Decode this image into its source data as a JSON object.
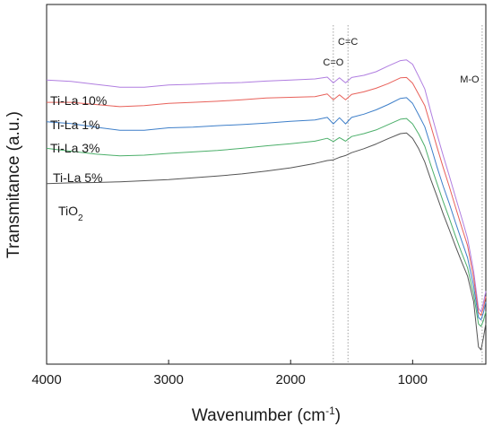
{
  "chart_data": {
    "type": "line",
    "title": "",
    "xlabel": "Wavenumber (cm",
    "xlabel_sup": "-1",
    "xlabel_end": ")",
    "ylabel": "Transmitance (a.u.)",
    "x_reversed": true,
    "xlim": [
      4000,
      400
    ],
    "xticks": [
      "4000",
      "3000",
      "2000",
      "1000"
    ],
    "x_tick_values": [
      4000,
      3000,
      2000,
      1000
    ],
    "ylim": [
      0,
      1
    ],
    "y_ticks_shown": false,
    "grid": false,
    "legend": "inline-left",
    "annotations": [
      {
        "label": "C=O",
        "x": 1650,
        "style": "dotted-line"
      },
      {
        "label": "C=C",
        "x": 1530,
        "style": "dotted-line"
      },
      {
        "label": "M-O",
        "x": 430,
        "style": "dotted-line"
      }
    ],
    "series_x": [
      4000,
      3800,
      3600,
      3400,
      3200,
      3000,
      2800,
      2600,
      2400,
      2200,
      2000,
      1800,
      1700,
      1650,
      1600,
      1550,
      1500,
      1400,
      1300,
      1200,
      1100,
      1050,
      1000,
      950,
      900,
      850,
      800,
      750,
      700,
      650,
      600,
      550,
      500,
      460,
      440,
      420,
      400
    ],
    "series": [
      {
        "name": "Ti-La 10%",
        "label_text": "Ti-La 10%",
        "color": "#b07ee0",
        "values": [
          0.79,
          0.786,
          0.778,
          0.77,
          0.77,
          0.776,
          0.778,
          0.781,
          0.783,
          0.787,
          0.79,
          0.793,
          0.798,
          0.782,
          0.796,
          0.782,
          0.797,
          0.803,
          0.813,
          0.829,
          0.844,
          0.846,
          0.834,
          0.8,
          0.765,
          0.7,
          0.639,
          0.58,
          0.524,
          0.466,
          0.409,
          0.35,
          0.258,
          0.155,
          0.146,
          0.17,
          0.203
        ]
      },
      {
        "name": "Ti-La 1%",
        "label_text": "Ti-La 1%",
        "color": "#e8615a",
        "values": [
          0.728,
          0.728,
          0.722,
          0.716,
          0.719,
          0.725,
          0.728,
          0.731,
          0.735,
          0.74,
          0.742,
          0.744,
          0.751,
          0.735,
          0.749,
          0.735,
          0.75,
          0.757,
          0.767,
          0.78,
          0.796,
          0.797,
          0.781,
          0.75,
          0.719,
          0.661,
          0.603,
          0.547,
          0.494,
          0.438,
          0.383,
          0.33,
          0.24,
          0.144,
          0.136,
          0.156,
          0.188
        ]
      },
      {
        "name": "Ti-La 3%",
        "label_text": "Ti-La 3%",
        "color": "#3e7fc9",
        "values": [
          0.674,
          0.669,
          0.659,
          0.65,
          0.65,
          0.657,
          0.659,
          0.663,
          0.666,
          0.67,
          0.675,
          0.679,
          0.686,
          0.668,
          0.685,
          0.668,
          0.686,
          0.695,
          0.707,
          0.722,
          0.739,
          0.741,
          0.725,
          0.693,
          0.66,
          0.605,
          0.548,
          0.495,
          0.447,
          0.395,
          0.345,
          0.296,
          0.217,
          0.13,
          0.123,
          0.143,
          0.173
        ]
      },
      {
        "name": "Ti-La 5%",
        "label_text": "Ti-La 5%",
        "color": "#4caf6a",
        "values": [
          0.6,
          0.592,
          0.584,
          0.579,
          0.581,
          0.586,
          0.59,
          0.594,
          0.6,
          0.607,
          0.613,
          0.62,
          0.628,
          0.619,
          0.63,
          0.62,
          0.633,
          0.641,
          0.651,
          0.666,
          0.681,
          0.683,
          0.668,
          0.64,
          0.606,
          0.552,
          0.502,
          0.452,
          0.406,
          0.357,
          0.311,
          0.268,
          0.194,
          0.112,
          0.105,
          0.121,
          0.146
        ]
      },
      {
        "name": "TiO2",
        "label_text": "TiO",
        "label_sub": "2",
        "color": "#555555",
        "values": [
          0.502,
          0.504,
          0.505,
          0.507,
          0.51,
          0.513,
          0.518,
          0.523,
          0.529,
          0.537,
          0.546,
          0.558,
          0.566,
          0.568,
          0.575,
          0.58,
          0.588,
          0.599,
          0.612,
          0.627,
          0.641,
          0.643,
          0.628,
          0.599,
          0.562,
          0.512,
          0.466,
          0.418,
          0.374,
          0.329,
          0.286,
          0.245,
          0.174,
          0.048,
          0.04,
          0.073,
          0.113
        ]
      }
    ]
  }
}
